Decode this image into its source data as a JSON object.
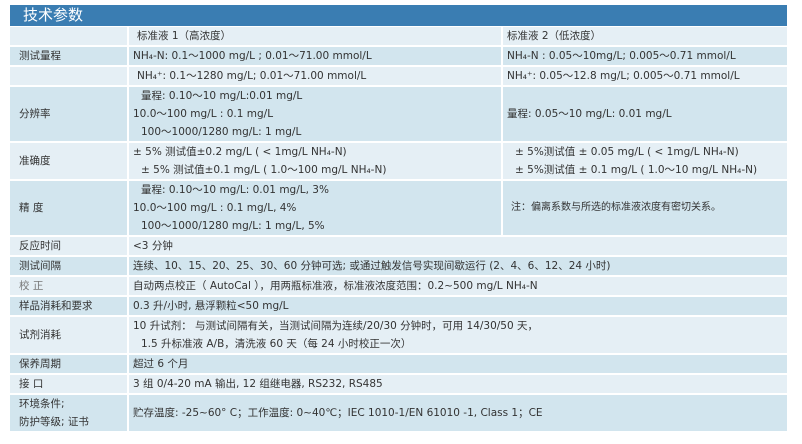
{
  "title": "技术参数",
  "header": {
    "col1": "标准液 1（高浓度）",
    "col2": "标准液 2（低浓度）"
  },
  "rows": {
    "range": {
      "label": "测试量程",
      "c1a": "NH₄-N: 0.1～1000 mg/L ; 0.01～71.00 mmol/L",
      "c2a": "NH₄-N : 0.05～10mg/L; 0.005～0.71 mmol/L",
      "c1b": "NH₄⁺: 0.1～1280 mg/L; 0.01～71.00 mmol/L",
      "c2b": "NH₄⁺: 0.05～12.8 mg/L; 0.005～0.71 mmol/L"
    },
    "resolution": {
      "label": "分辨率",
      "c1": [
        "量程: 0.10～10 mg/L:0.01 mg/L",
        "10.0～100 mg/L : 0.1 mg/L",
        "100～1000/1280 mg/L: 1 mg/L"
      ],
      "c2": "量程: 0.05～10 mg/L: 0.01 mg/L"
    },
    "accuracy": {
      "label": "准确度",
      "c1": [
        "± 5% 测试值±0.2 mg/L ( < 1mg/L NH₄-N)",
        "± 5% 测试值±0.1 mg/L ( 1.0～100 mg/L NH₄-N)"
      ],
      "c2": [
        "± 5%测试值 ± 0.05 mg/L ( < 1mg/L NH₄-N)",
        "± 5%测试值 ± 0.1 mg/L ( 1.0～10 mg/L NH₄-N)"
      ]
    },
    "precision": {
      "label": "精 度",
      "c1": [
        "量程: 0.10～10 mg/L: 0.01 mg/L, 3%",
        "10.0～100 mg/L : 0.1 mg/L, 4%",
        "100～1000/1280 mg/L: 1 mg/L, 5%"
      ],
      "c2": "注：偏离系数与所选的标准液浓度有密切关系。"
    },
    "response": {
      "label": "反应时间",
      "value": "<3 分钟"
    },
    "interval": {
      "label": "测试间隔",
      "value": "连续、10、15、20、25、30、60 分钟可选; 或通过触发信号实现间歇运行 (2、4、6、12、24 小时)"
    },
    "calibration": {
      "label": "校 正",
      "value": "自动两点校正（ AutoCal ），用两瓶标准液，标准液浓度范围：0.2~500 mg/L NH₄-N"
    },
    "sample": {
      "label": "样品消耗和要求",
      "value": "0.3 升/小时, 悬浮颗粒<50 mg/L"
    },
    "reagent": {
      "label": "试剂消耗",
      "lines": [
        "10 升试剂： 与测试间隔有关，当测试间隔为连续/20/30 分钟时，可用 14/30/50 天，",
        "1.5 升标准液 A/B，清洗液 60 天（每 24 小时校正一次）"
      ]
    },
    "maintenance": {
      "label": "保养周期",
      "value": "超过 6 个月"
    },
    "interface": {
      "label": "接 口",
      "value": "3 组 0/4-20 mA 输出, 12 组继电器, RS232, RS485"
    },
    "environment": {
      "label": [
        "环境条件;",
        "防护等级; 证书"
      ],
      "value": "贮存温度: -25~60° C；工作温度: 0~40℃；IEC 1010-1/EN 61010 -1, Class 1；CE"
    }
  }
}
